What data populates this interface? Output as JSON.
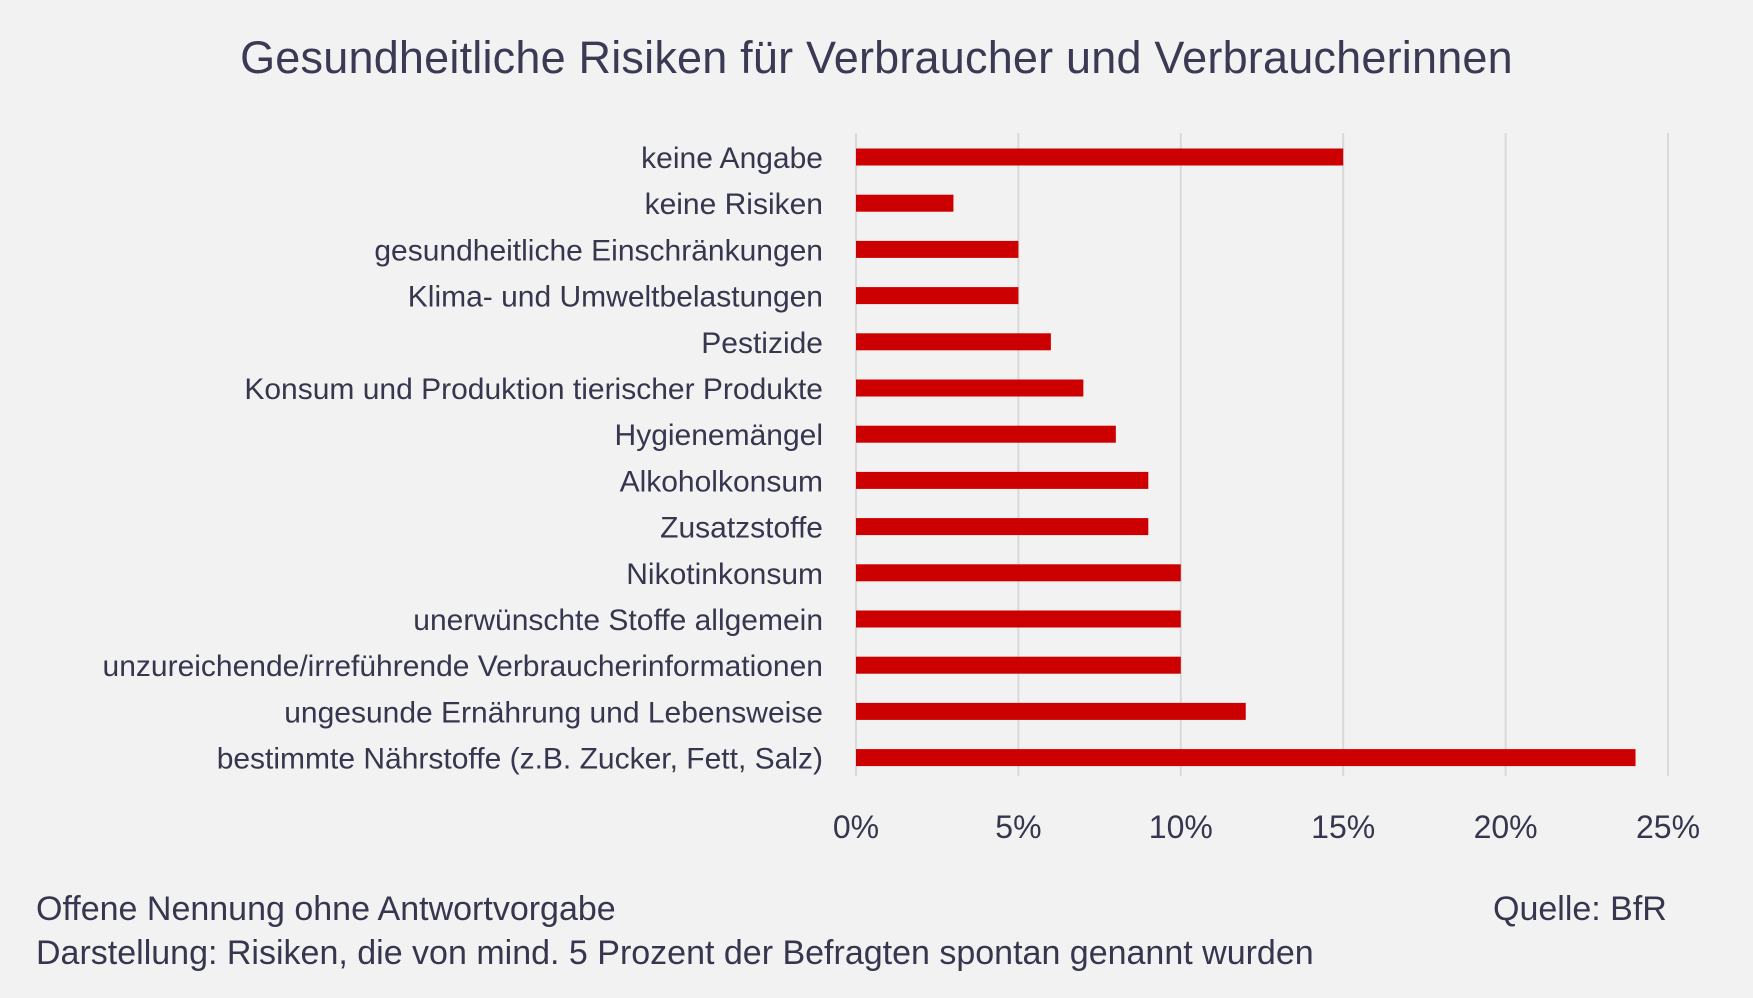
{
  "chart_data": {
    "type": "bar",
    "orientation": "horizontal",
    "title": "Gesundheitliche Risiken für Verbraucher und Verbraucherinnen",
    "categories": [
      "keine Angabe",
      "keine Risiken",
      "gesundheitliche Einschränkungen",
      "Klima- und Umweltbelastungen",
      "Pestizide",
      "Konsum und Produktion tierischer Produkte",
      "Hygienemängel",
      "Alkoholkonsum",
      "Zusatzstoffe",
      "Nikotinkonsum",
      "unerwünschte Stoffe allgemein",
      "unzureichende/irreführende Verbraucherinformationen",
      "ungesunde Ernährung und Lebensweise",
      "bestimmte Nährstoffe (z.B. Zucker, Fett, Salz)"
    ],
    "values": [
      15,
      3,
      5,
      5,
      6,
      7,
      8,
      9,
      9,
      10,
      10,
      10,
      12,
      24
    ],
    "xlim": [
      0,
      25
    ],
    "ticks": [
      0,
      5,
      10,
      15,
      20,
      25
    ],
    "tick_labels": [
      "0%",
      "5%",
      "10%",
      "15%",
      "20%",
      "25%"
    ],
    "grid": true,
    "bar_color": "#cc0000",
    "grid_color": "#d9d9d9"
  },
  "footer": {
    "note_1": "Offene Nennung ohne Antwortvorgabe",
    "note_2": "Darstellung: Risiken, die von mind. 5 Prozent der Befragten spontan genannt wurden",
    "source": "Quelle: BfR"
  }
}
